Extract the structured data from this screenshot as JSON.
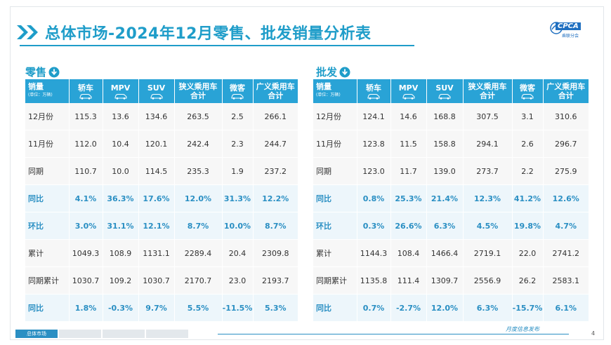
{
  "title": "总体市场-2024年12月零售、批发销量分析表",
  "logo": {
    "brand": "CPCA",
    "sub": "乘联分会"
  },
  "retail": {
    "label": "零售",
    "header_first": "销量",
    "header_unit": "(单位：万辆)",
    "columns": [
      {
        "l1": "轿车",
        "l2": "",
        "icon": "car"
      },
      {
        "l1": "MPV",
        "l2": "",
        "icon": "car"
      },
      {
        "l1": "SUV",
        "l2": "",
        "icon": "car"
      },
      {
        "l1": "狭义乘用车",
        "l2": "合计",
        "icon": ""
      },
      {
        "l1": "微客",
        "l2": "",
        "icon": "car"
      },
      {
        "l1": "广义乘用车",
        "l2": "合计",
        "icon": ""
      }
    ],
    "rows": [
      {
        "label": "12月份",
        "values": [
          "115.3",
          "13.6",
          "134.6",
          "263.5",
          "2.5",
          "266.1"
        ],
        "kind": "plain"
      },
      {
        "label": "11月份",
        "values": [
          "112.0",
          "10.4",
          "120.1",
          "242.4",
          "2.3",
          "244.7"
        ],
        "kind": "plain"
      },
      {
        "label": "同期",
        "values": [
          "110.7",
          "10.0",
          "114.5",
          "235.3",
          "1.9",
          "237.2"
        ],
        "kind": "plain"
      },
      {
        "label": "同比",
        "values": [
          "4.1%",
          "36.3%",
          "17.6%",
          "12.0%",
          "31.3%",
          "12.2%"
        ],
        "kind": "pct"
      },
      {
        "label": "环比",
        "values": [
          "3.0%",
          "31.1%",
          "12.1%",
          "8.7%",
          "10.0%",
          "8.7%"
        ],
        "kind": "pct"
      },
      {
        "label": "累计",
        "values": [
          "1049.3",
          "108.9",
          "1131.1",
          "2289.4",
          "20.4",
          "2309.8"
        ],
        "kind": "plain"
      },
      {
        "label": "同期累计",
        "values": [
          "1030.7",
          "109.2",
          "1030.7",
          "2170.7",
          "23.0",
          "2193.7"
        ],
        "kind": "plain"
      },
      {
        "label": "同比",
        "values": [
          "1.8%",
          "-0.3%",
          "9.7%",
          "5.5%",
          "-11.5%",
          "5.3%"
        ],
        "kind": "pct"
      }
    ]
  },
  "wholesale": {
    "label": "批发",
    "header_first": "销量",
    "header_unit": "(单位：万辆)",
    "columns": [
      {
        "l1": "轿车",
        "l2": "",
        "icon": "car"
      },
      {
        "l1": "MPV",
        "l2": "",
        "icon": "car"
      },
      {
        "l1": "SUV",
        "l2": "",
        "icon": "car"
      },
      {
        "l1": "狭义乘用车",
        "l2": "合计",
        "icon": ""
      },
      {
        "l1": "微客",
        "l2": "",
        "icon": "car"
      },
      {
        "l1": "广义乘用车",
        "l2": "合计",
        "icon": ""
      }
    ],
    "rows": [
      {
        "label": "12月份",
        "values": [
          "124.1",
          "14.6",
          "168.8",
          "307.5",
          "3.1",
          "310.6"
        ],
        "kind": "plain"
      },
      {
        "label": "11月份",
        "values": [
          "123.8",
          "11.5",
          "158.8",
          "294.1",
          "2.6",
          "296.7"
        ],
        "kind": "plain"
      },
      {
        "label": "同期",
        "values": [
          "123.0",
          "11.7",
          "139.0",
          "273.7",
          "2.2",
          "275.9"
        ],
        "kind": "plain"
      },
      {
        "label": "同比",
        "values": [
          "0.8%",
          "25.3%",
          "21.4%",
          "12.3%",
          "41.2%",
          "12.6%"
        ],
        "kind": "pct"
      },
      {
        "label": "环比",
        "values": [
          "0.3%",
          "26.6%",
          "6.3%",
          "4.5%",
          "19.8%",
          "4.7%"
        ],
        "kind": "pct"
      },
      {
        "label": "累计",
        "values": [
          "1144.3",
          "108.4",
          "1466.4",
          "2719.1",
          "22.0",
          "2741.2"
        ],
        "kind": "plain"
      },
      {
        "label": "同期累计",
        "values": [
          "1135.8",
          "111.4",
          "1309.7",
          "2556.9",
          "26.2",
          "2583.1"
        ],
        "kind": "plain"
      },
      {
        "label": "同比",
        "values": [
          "0.7%",
          "-2.7%",
          "12.0%",
          "6.3%",
          "-15.7%",
          "6.1%"
        ],
        "kind": "pct"
      }
    ]
  },
  "footer": {
    "tabs": [
      "总体市场",
      "",
      "",
      ""
    ],
    "right_text": "月度信息发布",
    "page": "4"
  },
  "colors": {
    "accent": "#1f9dc9",
    "header_bg": "#29a3d6",
    "pct_text": "#2a8fc3"
  },
  "icons": [
    "double-chevron-icon",
    "down-arrow-circle-icon",
    "car-icon",
    "cpca-logo"
  ]
}
